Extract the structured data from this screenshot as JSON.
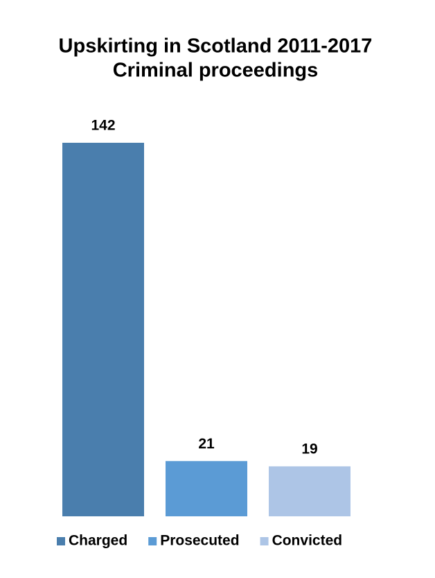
{
  "chart_data": {
    "type": "bar",
    "title": "Upskirting in Scotland 2011-2017",
    "subtitle": "Criminal proceedings",
    "series": [
      {
        "name": "Charged",
        "color": "#4a7ead",
        "values": [
          142
        ]
      },
      {
        "name": "Prosecuted",
        "color": "#5b9bd5",
        "values": [
          21
        ]
      },
      {
        "name": "Convicted",
        "color": "#adc5e6",
        "values": [
          19
        ]
      }
    ],
    "ylim": [
      0,
      142
    ],
    "legend": "bottom"
  }
}
